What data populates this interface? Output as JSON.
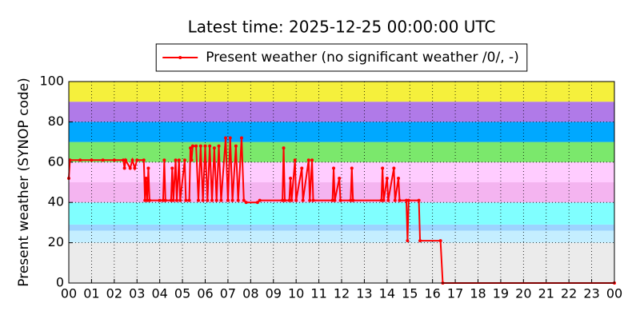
{
  "chart_data": {
    "type": "line",
    "title": "Latest time: 2025-12-25 00:00:00 UTC",
    "y_label": "Present weather (SYNOP code)",
    "legend": "upper center",
    "grid": true,
    "xlim": [
      0,
      24
    ],
    "xticks": [
      {
        "value": 0,
        "label": "00"
      },
      {
        "value": 1,
        "label": "01"
      },
      {
        "value": 2,
        "label": "02"
      },
      {
        "value": 3,
        "label": "03"
      },
      {
        "value": 4,
        "label": "04"
      },
      {
        "value": 5,
        "label": "05"
      },
      {
        "value": 6,
        "label": "06"
      },
      {
        "value": 7,
        "label": "07"
      },
      {
        "value": 8,
        "label": "08"
      },
      {
        "value": 9,
        "label": "09"
      },
      {
        "value": 10,
        "label": "10"
      },
      {
        "value": 11,
        "label": "11"
      },
      {
        "value": 12,
        "label": "12"
      },
      {
        "value": 13,
        "label": "13"
      },
      {
        "value": 14,
        "label": "14"
      },
      {
        "value": 15,
        "label": "15"
      },
      {
        "value": 16,
        "label": "16"
      },
      {
        "value": 17,
        "label": "17"
      },
      {
        "value": 18,
        "label": "18"
      },
      {
        "value": 19,
        "label": "19"
      },
      {
        "value": 20,
        "label": "20"
      },
      {
        "value": 21,
        "label": "21"
      },
      {
        "value": 22,
        "label": "22"
      },
      {
        "value": 23,
        "label": "23"
      },
      {
        "value": 24,
        "label": "00"
      }
    ],
    "ylim": [
      0,
      100
    ],
    "yticks": [
      0,
      20,
      40,
      60,
      80,
      100
    ],
    "bands": [
      {
        "from": 0,
        "to": 20,
        "color": "#ebebeb"
      },
      {
        "from": 20,
        "to": 26,
        "color": "#c4eeff"
      },
      {
        "from": 26,
        "to": 29,
        "color": "#9cd4ff"
      },
      {
        "from": 29,
        "to": 40,
        "color": "#80ffff"
      },
      {
        "from": 40,
        "to": 50,
        "color": "#f4b4f0"
      },
      {
        "from": 50,
        "to": 60,
        "color": "#ffccff"
      },
      {
        "from": 60,
        "to": 70,
        "color": "#7be86c"
      },
      {
        "from": 70,
        "to": 80,
        "color": "#00a8ff"
      },
      {
        "from": 80,
        "to": 90,
        "color": "#b07ae8"
      },
      {
        "from": 90,
        "to": 100,
        "color": "#f5f03c"
      }
    ],
    "x": [
      0,
      0.05,
      0.5,
      1,
      1.5,
      2,
      2.4,
      2.45,
      2.5,
      2.7,
      2.8,
      2.9,
      3.0,
      3.3,
      3.35,
      3.4,
      3.45,
      3.5,
      3.55,
      4.0,
      4.15,
      4.2,
      4.25,
      4.5,
      4.55,
      4.6,
      4.7,
      4.75,
      4.85,
      4.9,
      5.1,
      5.15,
      5.3,
      5.35,
      5.4,
      5.45,
      5.6,
      5.7,
      5.8,
      5.9,
      6.0,
      6.1,
      6.2,
      6.3,
      6.4,
      6.5,
      6.6,
      6.7,
      6.9,
      7.0,
      7.1,
      7.2,
      7.35,
      7.45,
      7.6,
      7.7,
      7.8,
      8.3,
      8.4,
      9.4,
      9.45,
      9.5,
      9.7,
      9.75,
      9.8,
      9.95,
      10.0,
      10.25,
      10.3,
      10.55,
      10.6,
      10.7,
      10.75,
      11.6,
      11.65,
      11.7,
      11.9,
      11.95,
      12.4,
      12.45,
      12.5,
      13.75,
      13.8,
      13.85,
      14.0,
      14.05,
      14.3,
      14.35,
      14.5,
      14.55,
      14.85,
      14.9,
      14.95,
      15.4,
      15.45,
      16.35,
      16.45,
      24
    ],
    "series": [
      {
        "name": "Present weather (no significant weather /0/, -)",
        "color": "#ff0000",
        "values": [
          52,
          61,
          61,
          61,
          61,
          61,
          61,
          57,
          61,
          57,
          61,
          57,
          61,
          61,
          41,
          52,
          41,
          57,
          41,
          41,
          41,
          61,
          41,
          41,
          57,
          41,
          61,
          41,
          61,
          41,
          61,
          41,
          41,
          67,
          61,
          68,
          68,
          41,
          68,
          41,
          68,
          41,
          68,
          41,
          67,
          41,
          68,
          41,
          72,
          41,
          72,
          41,
          68,
          41,
          72,
          41,
          40,
          40,
          41,
          41,
          67,
          41,
          41,
          52,
          41,
          61,
          41,
          57,
          41,
          61,
          41,
          61,
          41,
          41,
          57,
          41,
          52,
          41,
          41,
          57,
          41,
          41,
          57,
          41,
          52,
          41,
          57,
          41,
          52,
          41,
          41,
          21,
          41,
          41,
          21,
          21,
          0,
          0
        ]
      }
    ]
  }
}
